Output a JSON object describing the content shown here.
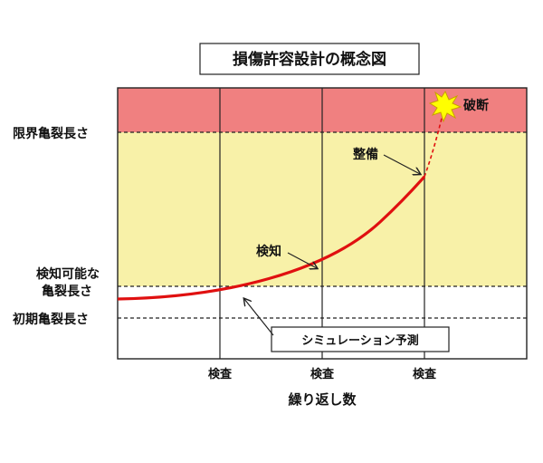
{
  "title": "損傷許容設計の概念図",
  "y_labels": {
    "limit": "限界亀裂長さ",
    "detectable_line1": "検知可能な",
    "detectable_line2": "亀裂長さ",
    "initial": "初期亀裂長さ"
  },
  "x_title": "繰り返し数",
  "inspections": [
    "検査",
    "検査",
    "検査"
  ],
  "annotations": {
    "fracture": "破断",
    "repair": "整備",
    "detect": "検知",
    "simulation": "シミュレーション予測"
  },
  "colors": {
    "critical_zone": "#f08080",
    "detectable_zone": "#f8f1a8",
    "crack_curve": "#e01010",
    "burst": "#ffff00"
  }
}
